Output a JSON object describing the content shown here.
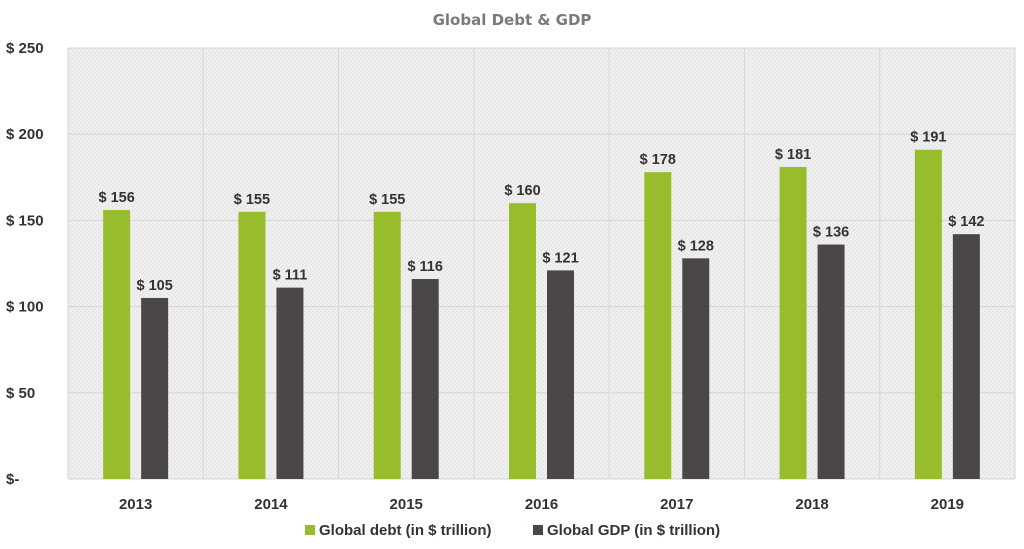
{
  "chart_data": {
    "type": "bar",
    "title": "Global Debt & GDP",
    "categories": [
      "2013",
      "2014",
      "2015",
      "2016",
      "2017",
      "2018",
      "2019"
    ],
    "series": [
      {
        "name": "Global debt (in $ trillion)",
        "color": "#97bd2c",
        "values": [
          156,
          155,
          155,
          160,
          178,
          181,
          191
        ],
        "labels": [
          "$ 156",
          "$ 155",
          "$ 155",
          "$ 160",
          "$ 178",
          "$ 181",
          "$ 191"
        ]
      },
      {
        "name": "Global GDP (in $ trillion)",
        "color": "#4b4647",
        "values": [
          105,
          111,
          116,
          121,
          128,
          136,
          142
        ],
        "labels": [
          "$ 105",
          "$ 111",
          "$ 116",
          "$ 121",
          "$ 128",
          "$ 136",
          "$ 142"
        ]
      }
    ],
    "yticks": [
      {
        "value": 0,
        "label": "$-"
      },
      {
        "value": 50,
        "label": "$ 50"
      },
      {
        "value": 100,
        "label": "$ 100"
      },
      {
        "value": 150,
        "label": "$ 150"
      },
      {
        "value": 200,
        "label": "$ 200"
      },
      {
        "value": 250,
        "label": "$ 250"
      }
    ],
    "ylim": [
      0,
      250
    ],
    "grid": true,
    "legend_position": "bottom",
    "plot_background": "#ebebeb"
  }
}
